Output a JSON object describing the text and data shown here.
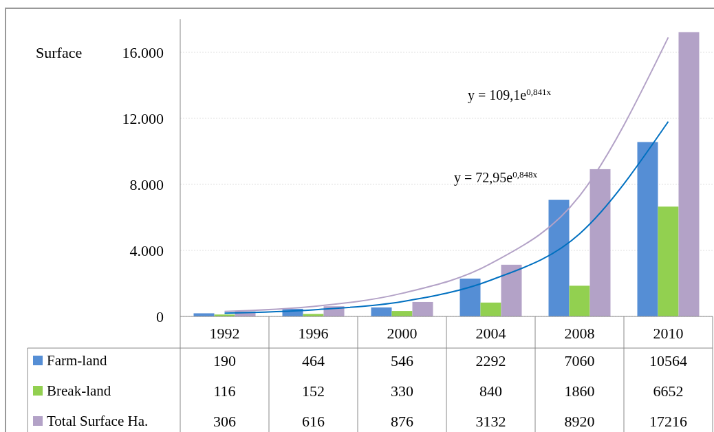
{
  "chart_data": {
    "type": "bar",
    "ylabel": "Surface",
    "categories": [
      "1992",
      "1996",
      "2000",
      "2004",
      "2008",
      "2010"
    ],
    "series": [
      {
        "name": "Farm-land",
        "color": "#558ed5",
        "values": [
          190,
          464,
          546,
          2292,
          7060,
          10564
        ],
        "value_labels": [
          "190",
          "464",
          "546",
          "2292",
          "7060",
          "10564"
        ]
      },
      {
        "name": "Break-land",
        "color": "#92d050",
        "values": [
          116,
          152,
          330,
          840,
          1860,
          6652
        ],
        "value_labels": [
          "116",
          "152",
          "330",
          "840",
          "1860",
          "6652"
        ]
      },
      {
        "name": "Total Surface Ha.",
        "color": "#b3a2c7",
        "values": [
          306,
          616,
          876,
          3132,
          8920,
          17216
        ],
        "value_labels": [
          "306",
          "616",
          "876",
          "3132",
          "8920",
          "17216"
        ]
      },
      {
        "type": "line",
        "color": "#b3a2c7",
        "values": [
          300,
          600,
          1400,
          3200,
          7300,
          16900
        ]
      },
      {
        "type": "line",
        "color": "#0070c0",
        "values": [
          200,
          400,
          900,
          2200,
          5000,
          11800
        ]
      }
    ],
    "ylim": [
      0,
      18000
    ],
    "yticks": [
      {
        "value": 0,
        "label": "0"
      },
      {
        "value": 4000,
        "label": "4.000"
      },
      {
        "value": 8000,
        "label": "8.000"
      },
      {
        "value": 12000,
        "label": "12.000"
      },
      {
        "value": 16000,
        "label": "16.000"
      }
    ],
    "grid": "y",
    "legend": "bottom",
    "annotations": [
      "y = 109,1e$^{0,841x}$",
      "y = 72,95e$^{0,848x}$"
    ]
  }
}
